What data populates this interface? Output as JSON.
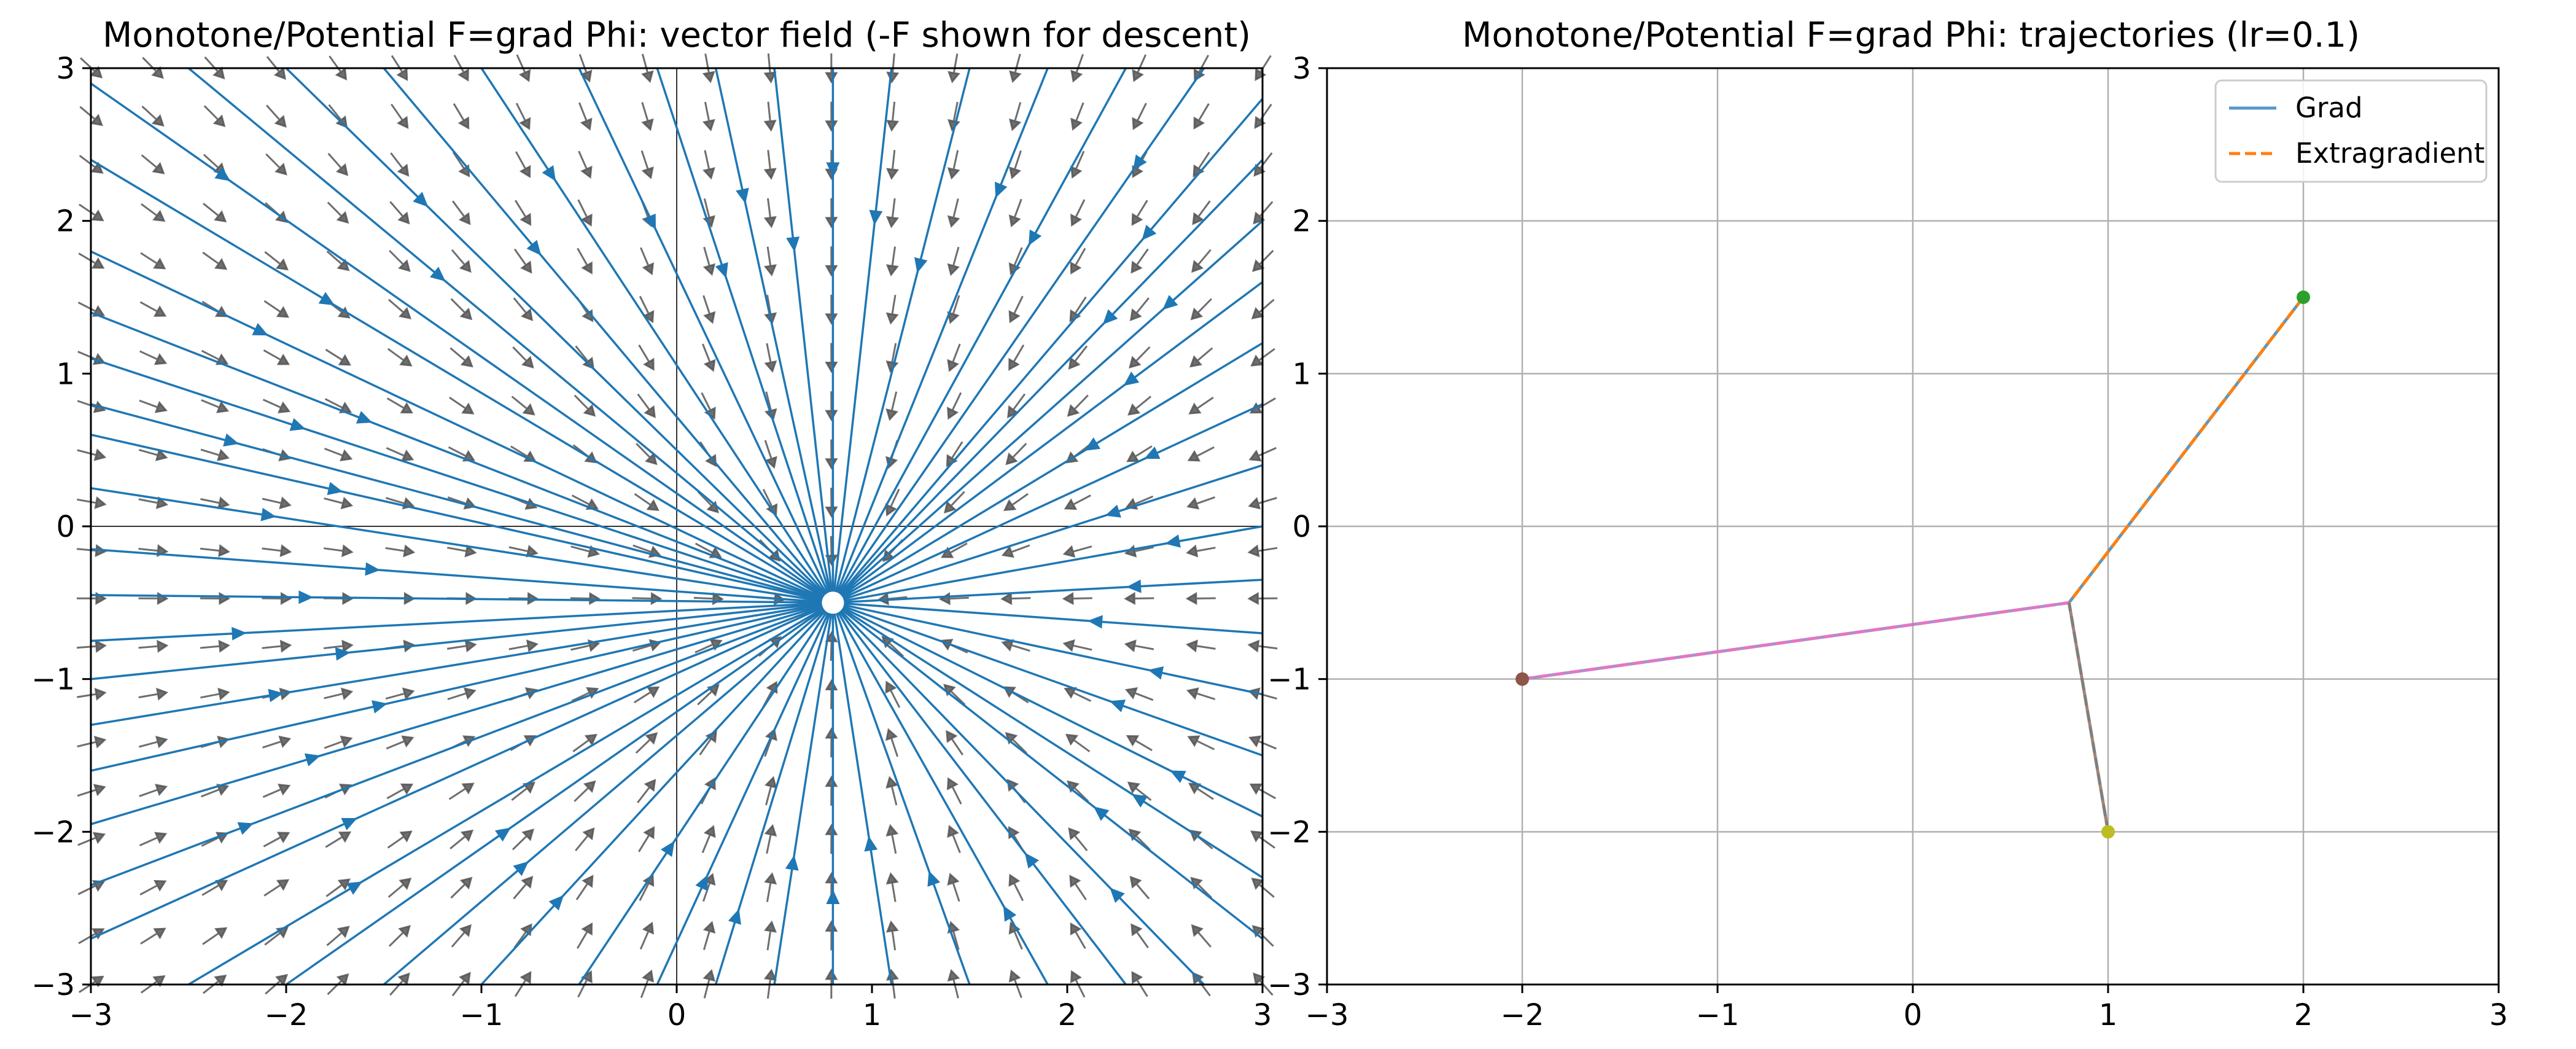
{
  "colors": {
    "streamline": "#1f77b4",
    "quiver": "#555555",
    "grid": "#b0b0b0",
    "grad_line": "#1f77b4",
    "extragradient_line": "#ff7f0e",
    "overlay_lines": [
      "#9467bd",
      "#e377c2",
      "#8c564b",
      "#7f7f7f"
    ],
    "start_markers": [
      "#2ca02c",
      "#8c564b",
      "#bcbd22"
    ],
    "legend_border": "#cccccc"
  },
  "chart_data": [
    {
      "type": "quiver",
      "title": "Monotone/Potential F=grad Phi: vector field (-F shown for descent)",
      "xlabel": "",
      "ylabel": "",
      "xlim": [
        -3,
        3
      ],
      "ylim": [
        -3,
        3
      ],
      "xticks": [
        -3,
        -2,
        -1,
        0,
        1,
        2,
        3
      ],
      "yticks": [
        -3,
        -2,
        -1,
        0,
        1,
        2,
        3
      ],
      "xtick_labels": [
        "−3",
        "−2",
        "−1",
        "0",
        "1",
        "2",
        "3"
      ],
      "ytick_labels": [
        "−3",
        "−2",
        "−1",
        "0",
        "1",
        "2",
        "3"
      ],
      "grid": false,
      "axhline": 0,
      "axvline": 0,
      "field": "descent direction -F, converging to a sink",
      "sink": [
        0.8,
        -0.5
      ],
      "quiver_spacing": 0.316,
      "streamline_seeds": [
        [
          -3,
          2.9
        ],
        [
          -3,
          2.4
        ],
        [
          -3,
          1.8
        ],
        [
          -3,
          1.4
        ],
        [
          -3,
          1.1
        ],
        [
          -3,
          0.8
        ],
        [
          -3,
          0.6
        ],
        [
          -3,
          0.25
        ],
        [
          -3,
          -0.15
        ],
        [
          -3,
          -0.45
        ],
        [
          -3,
          -0.75
        ],
        [
          -3,
          -1.0
        ],
        [
          -3,
          -1.3
        ],
        [
          -3,
          -1.6
        ],
        [
          -3,
          -1.95
        ],
        [
          -3,
          -2.35
        ],
        [
          -3,
          -2.7
        ],
        [
          -2.5,
          -3
        ],
        [
          -2.0,
          -3
        ],
        [
          -1.5,
          -3
        ],
        [
          -1.0,
          -3
        ],
        [
          -0.5,
          -3
        ],
        [
          -0.1,
          -3
        ],
        [
          0.2,
          -3
        ],
        [
          0.5,
          -3
        ],
        [
          0.8,
          -3
        ],
        [
          1.1,
          -3
        ],
        [
          1.5,
          -3
        ],
        [
          1.9,
          -3
        ],
        [
          2.3,
          -3
        ],
        [
          2.7,
          -3
        ],
        [
          3,
          -2.7
        ],
        [
          3,
          -2.3
        ],
        [
          3,
          -1.9
        ],
        [
          3,
          -1.5
        ],
        [
          3,
          -1.1
        ],
        [
          3,
          -0.7
        ],
        [
          3,
          -0.35
        ],
        [
          3,
          0.0
        ],
        [
          3,
          0.4
        ],
        [
          3,
          0.8
        ],
        [
          3,
          1.2
        ],
        [
          3,
          1.6
        ],
        [
          3,
          2.0
        ],
        [
          3,
          2.4
        ],
        [
          3,
          2.8
        ],
        [
          2.7,
          3
        ],
        [
          2.3,
          3
        ],
        [
          1.9,
          3
        ],
        [
          1.5,
          3
        ],
        [
          1.1,
          3
        ],
        [
          0.8,
          3
        ],
        [
          0.5,
          3
        ],
        [
          0.2,
          3
        ],
        [
          -0.1,
          3
        ],
        [
          -0.5,
          3
        ],
        [
          -1.0,
          3
        ],
        [
          -1.5,
          3
        ],
        [
          -2.0,
          3
        ],
        [
          -2.5,
          3
        ]
      ]
    },
    {
      "type": "line",
      "title": "Monotone/Potential F=grad Phi: trajectories (lr=0.1)",
      "xlabel": "",
      "ylabel": "",
      "xlim": [
        -3,
        3
      ],
      "ylim": [
        -3,
        3
      ],
      "xticks": [
        -3,
        -2,
        -1,
        0,
        1,
        2,
        3
      ],
      "yticks": [
        -3,
        -2,
        -1,
        0,
        1,
        2,
        3
      ],
      "xtick_labels": [
        "−3",
        "−2",
        "−1",
        "0",
        "1",
        "2",
        "3"
      ],
      "ytick_labels": [
        "−3",
        "−2",
        "−1",
        "0",
        "1",
        "2",
        "3"
      ],
      "grid": true,
      "legend": {
        "placement": "upper right",
        "entries": [
          "Grad",
          "Extragradient"
        ]
      },
      "series": [
        {
          "name": "Grad",
          "style": "solid",
          "x": [
            2,
            0.8
          ],
          "y": [
            1.5,
            -0.5
          ]
        },
        {
          "name": "Extragradient",
          "style": "dashed",
          "x": [
            2,
            0.8
          ],
          "y": [
            1.5,
            -0.5
          ]
        },
        {
          "style": "solid",
          "x": [
            -2,
            0.8
          ],
          "y": [
            -1,
            -0.5
          ]
        },
        {
          "style": "dashed",
          "x": [
            -2,
            0.8
          ],
          "y": [
            -1,
            -0.5
          ]
        },
        {
          "style": "solid",
          "x": [
            1,
            0.8
          ],
          "y": [
            -2,
            -0.5
          ]
        },
        {
          "style": "dashed",
          "x": [
            1,
            0.8
          ],
          "y": [
            -2,
            -0.5
          ]
        }
      ],
      "start_points": [
        [
          2,
          1.5
        ],
        [
          -2,
          -1
        ],
        [
          1,
          -2
        ]
      ]
    }
  ]
}
